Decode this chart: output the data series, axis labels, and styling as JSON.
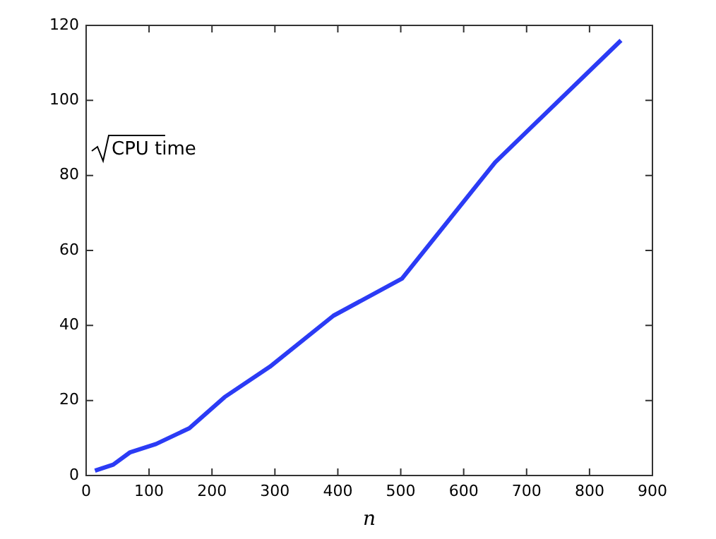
{
  "chart_data": {
    "type": "line",
    "xlabel": "n",
    "annotations": [
      "CPU time"
    ],
    "x": [
      14,
      43,
      70,
      111,
      164,
      220,
      292,
      393,
      502,
      650,
      850
    ],
    "series": [
      {
        "color": "#2b3bf5",
        "values": [
          1.3,
          2.9,
          6.2,
          8.4,
          12.6,
          20.9,
          29,
          42.6,
          52.5,
          83.5,
          116
        ]
      }
    ],
    "xlim": [
      0,
      900
    ],
    "xticks": [
      0,
      100,
      200,
      300,
      400,
      500,
      600,
      700,
      800,
      900
    ],
    "ylim": [
      0,
      120
    ],
    "yticks": [
      0,
      20,
      40,
      60,
      80,
      100,
      120
    ],
    "grid": false,
    "legend": false,
    "marker": "none",
    "line_style": "solid"
  }
}
